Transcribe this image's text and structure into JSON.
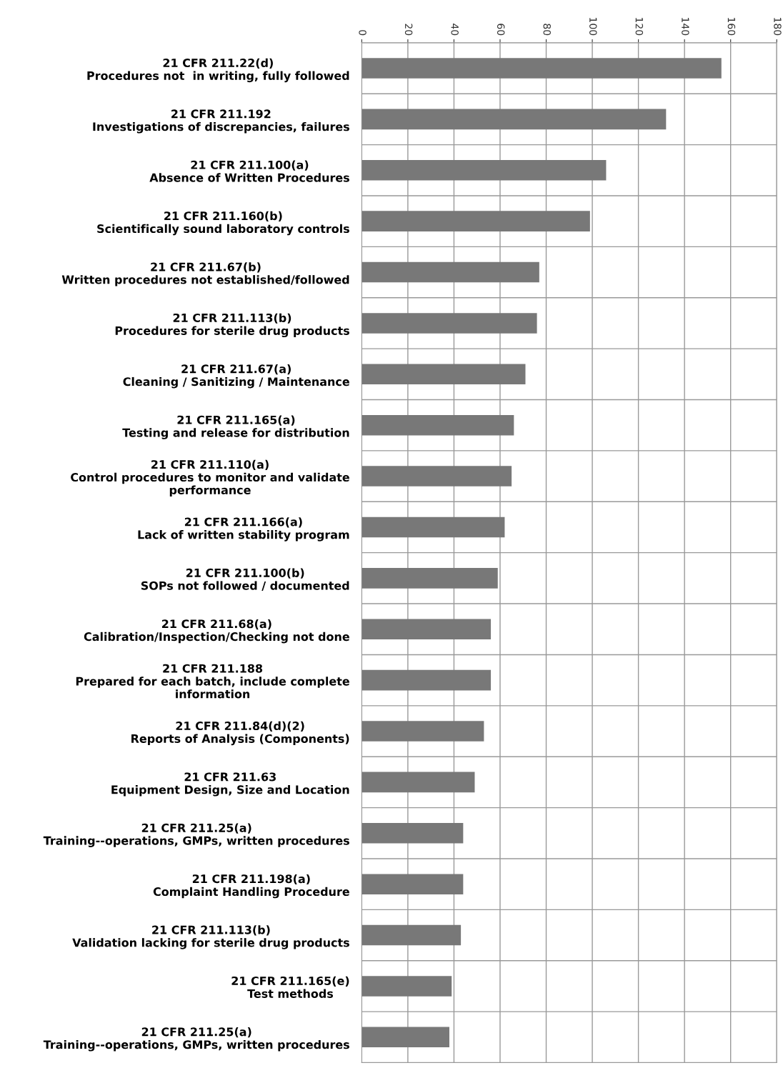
{
  "chart_data": {
    "type": "bar",
    "orientation": "horizontal",
    "categories": [
      "21 CFR 211.22(d)\nProcedures not  in writing, fully followed",
      "21 CFR 211.192\nInvestigations of discrepancies, failures",
      "21 CFR 211.100(a)\nAbsence of Written Procedures",
      "21 CFR 211.160(b)\nScientifically sound laboratory controls",
      "21 CFR 211.67(b)\nWritten procedures not established/followed",
      "21 CFR 211.113(b)\nProcedures for sterile drug products",
      "21 CFR 211.67(a)\nCleaning / Sanitizing / Maintenance",
      "21 CFR 211.165(a)\nTesting and release for distribution",
      "21 CFR 211.110(a)\nControl procedures to monitor and validate\nperformance",
      "21 CFR 211.166(a)\nLack of written stability program",
      "21 CFR 211.100(b)\nSOPs not followed / documented",
      "21 CFR 211.68(a)\nCalibration/Inspection/Checking not done",
      "21 CFR 211.188\nPrepared for each batch, include complete\ninformation",
      "21 CFR 211.84(d)(2)\nReports of Analysis (Components)",
      "21 CFR 211.63\nEquipment Design, Size and Location",
      "21 CFR 211.25(a)\nTraining--operations, GMPs, written procedures",
      "21 CFR 211.198(a)\nComplaint Handling Procedure",
      "21 CFR 211.113(b)\nValidation lacking for sterile drug products",
      "21 CFR 211.165(e)\nTest methods",
      "21 CFR 211.25(a)\nTraining--operations, GMPs, written procedures"
    ],
    "values": [
      156,
      132,
      106,
      99,
      77,
      76,
      71,
      66,
      65,
      62,
      59,
      56,
      56,
      53,
      49,
      44,
      44,
      43,
      39,
      38
    ],
    "color": "#787878",
    "xlim": [
      0,
      180
    ],
    "xticks": [
      0,
      20,
      40,
      60,
      80,
      100,
      120,
      140,
      160,
      180
    ],
    "grid": true
  }
}
